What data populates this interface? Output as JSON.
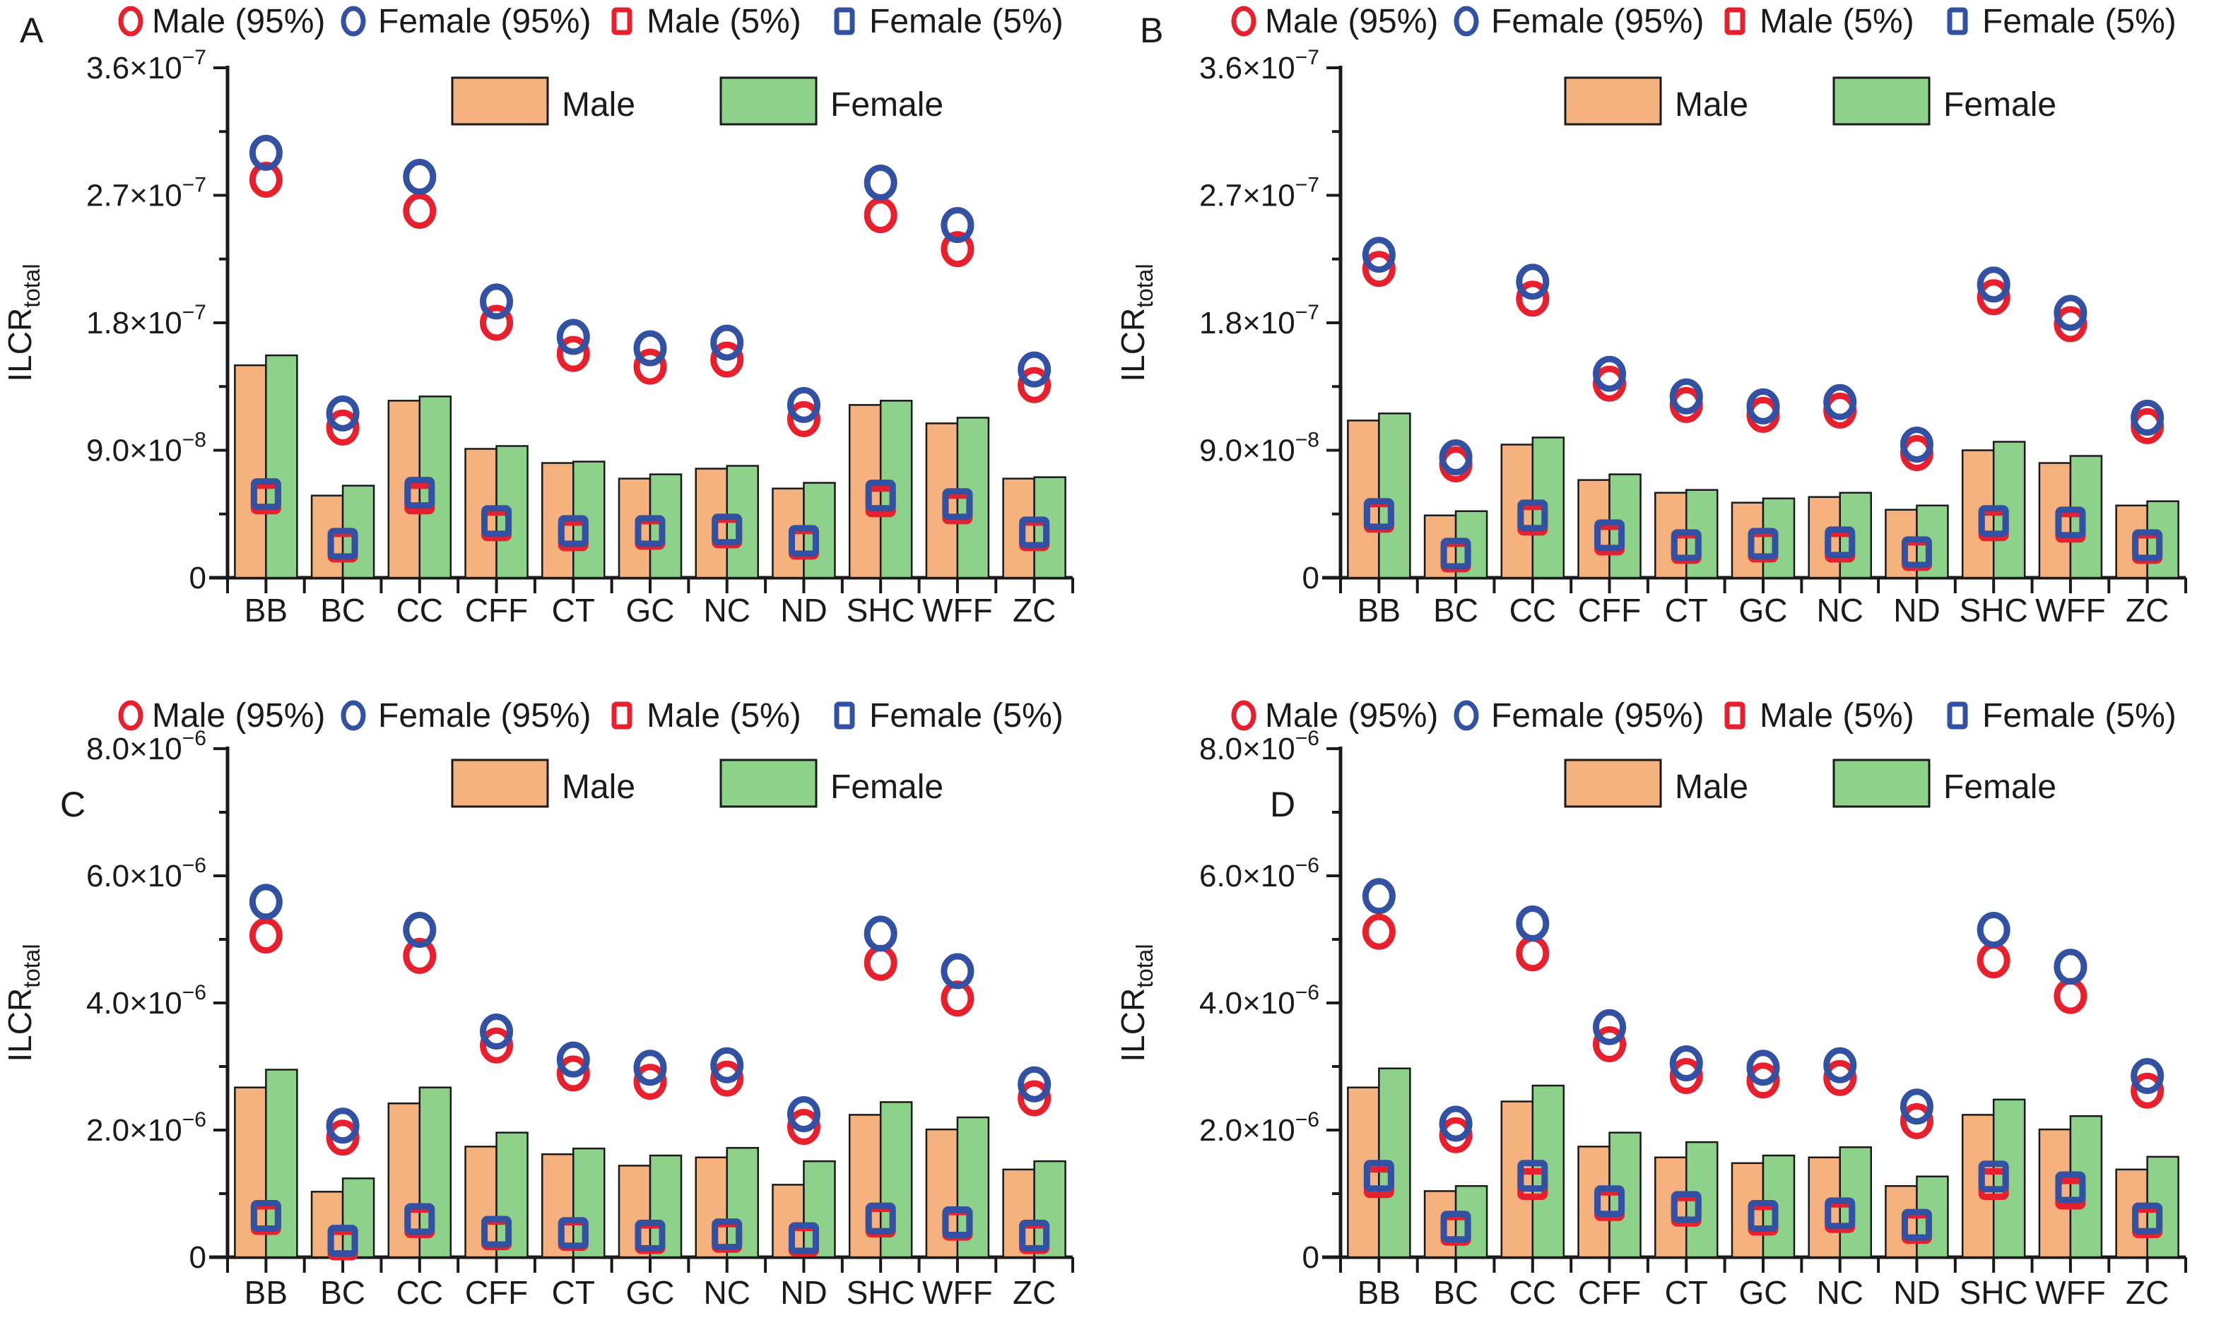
{
  "figure": {
    "ylabel": {
      "text": "ILCR",
      "sub": "total"
    },
    "colors": {
      "male_marker": "#e8202d",
      "female_marker": "#3351a3",
      "male_bar": "#f5b17e",
      "female_bar": "#8ed18b",
      "axis": "#1a1a1a"
    },
    "legend_markers": [
      {
        "label": "Male (95%)",
        "shape": "circle",
        "color": "#e8202d"
      },
      {
        "label": "Female (95%)",
        "shape": "circle",
        "color": "#3351a3"
      },
      {
        "label": "Male (5%)",
        "shape": "square",
        "color": "#e8202d"
      },
      {
        "label": "Female (5%)",
        "shape": "square",
        "color": "#3351a3"
      }
    ],
    "legend_bars": [
      {
        "label": "Male",
        "color": "#f5b17e"
      },
      {
        "label": "Female",
        "color": "#8ed18b"
      }
    ]
  },
  "chart_data": [
    {
      "panel": "A",
      "type": "bar",
      "categories": [
        "BB",
        "BC",
        "CC",
        "CFF",
        "CT",
        "GC",
        "NC",
        "ND",
        "SHC",
        "WFF",
        "ZC"
      ],
      "ylim": [
        0,
        3.6e-07
      ],
      "yticks": [
        {
          "v": 0,
          "m": "0",
          "e": ""
        },
        {
          "v": 9e-08,
          "m": "9.0×10",
          "e": "−8"
        },
        {
          "v": 1.8e-07,
          "m": "1.8×10",
          "e": "−7"
        },
        {
          "v": 2.7e-07,
          "m": "2.7×10",
          "e": "−7"
        },
        {
          "v": 3.6e-07,
          "m": "3.6×10",
          "e": "−7"
        }
      ],
      "yminor": [
        4.5e-08,
        1.35e-07,
        2.25e-07,
        3.15e-07
      ],
      "series": [
        {
          "name": "Male",
          "type": "bar",
          "color": "#f5b17e",
          "values": [
            1.5e-07,
            5.8e-08,
            1.25e-07,
            9.1e-08,
            8.1e-08,
            7e-08,
            7.7e-08,
            6.3e-08,
            1.22e-07,
            1.09e-07,
            7e-08
          ]
        },
        {
          "name": "Female",
          "type": "bar",
          "color": "#8ed18b",
          "values": [
            1.57e-07,
            6.5e-08,
            1.28e-07,
            9.3e-08,
            8.2e-08,
            7.3e-08,
            7.9e-08,
            6.7e-08,
            1.25e-07,
            1.13e-07,
            7.1e-08
          ]
        },
        {
          "name": "Male (95%)",
          "type": "circle",
          "color": "#e8202d",
          "values": [
            2.81e-07,
            1.06e-07,
            2.59e-07,
            1.8e-07,
            1.58e-07,
            1.49e-07,
            1.54e-07,
            1.12e-07,
            2.56e-07,
            2.32e-07,
            1.36e-07
          ]
        },
        {
          "name": "Female (95%)",
          "type": "circle",
          "color": "#3351a3",
          "values": [
            3e-07,
            1.16e-07,
            2.83e-07,
            1.95e-07,
            1.7e-07,
            1.62e-07,
            1.66e-07,
            1.22e-07,
            2.79e-07,
            2.49e-07,
            1.47e-07
          ]
        },
        {
          "name": "Male (5%)",
          "type": "square",
          "color": "#e8202d",
          "values": [
            5.6e-08,
            2.2e-08,
            5.6e-08,
            3.7e-08,
            3e-08,
            3.1e-08,
            3.2e-08,
            2.4e-08,
            5.4e-08,
            4.9e-08,
            3e-08
          ]
        },
        {
          "name": "Female (5%)",
          "type": "square",
          "color": "#3351a3",
          "values": [
            5.9e-08,
            2.4e-08,
            6e-08,
            4e-08,
            3.3e-08,
            3.3e-08,
            3.4e-08,
            2.6e-08,
            5.8e-08,
            5.2e-08,
            3.2e-08
          ]
        }
      ]
    },
    {
      "panel": "B",
      "type": "bar",
      "categories": [
        "BB",
        "BC",
        "CC",
        "CFF",
        "CT",
        "GC",
        "NC",
        "ND",
        "SHC",
        "WFF",
        "ZC"
      ],
      "ylim": [
        0,
        3.6e-07
      ],
      "yticks": [
        {
          "v": 0,
          "m": "0",
          "e": ""
        },
        {
          "v": 9e-08,
          "m": "9.0×10",
          "e": "−8"
        },
        {
          "v": 1.8e-07,
          "m": "1.8×10",
          "e": "−7"
        },
        {
          "v": 2.7e-07,
          "m": "2.7×10",
          "e": "−7"
        },
        {
          "v": 3.6e-07,
          "m": "3.6×10",
          "e": "−7"
        }
      ],
      "yminor": [
        4.5e-08,
        1.35e-07,
        2.25e-07,
        3.15e-07
      ],
      "series": [
        {
          "name": "Male",
          "type": "bar",
          "color": "#f5b17e",
          "values": [
            1.11e-07,
            4.4e-08,
            9.4e-08,
            6.9e-08,
            6e-08,
            5.3e-08,
            5.7e-08,
            4.8e-08,
            9e-08,
            8.1e-08,
            5.1e-08
          ]
        },
        {
          "name": "Female",
          "type": "bar",
          "color": "#8ed18b",
          "values": [
            1.16e-07,
            4.7e-08,
            9.9e-08,
            7.3e-08,
            6.2e-08,
            5.6e-08,
            6e-08,
            5.1e-08,
            9.6e-08,
            8.6e-08,
            5.4e-08
          ]
        },
        {
          "name": "Male (95%)",
          "type": "circle",
          "color": "#e8202d",
          "values": [
            2.18e-07,
            8e-08,
            1.97e-07,
            1.37e-07,
            1.22e-07,
            1.15e-07,
            1.18e-07,
            8.8e-08,
            1.98e-07,
            1.79e-07,
            1.07e-07
          ]
        },
        {
          "name": "Female (95%)",
          "type": "circle",
          "color": "#3351a3",
          "values": [
            2.28e-07,
            8.5e-08,
            2.09e-07,
            1.44e-07,
            1.28e-07,
            1.21e-07,
            1.24e-07,
            9.4e-08,
            2.07e-07,
            1.87e-07,
            1.13e-07
          ]
        },
        {
          "name": "Male (5%)",
          "type": "square",
          "color": "#e8202d",
          "values": [
            4.3e-08,
            1.5e-08,
            4.1e-08,
            2.7e-08,
            2.1e-08,
            2.2e-08,
            2.2e-08,
            1.6e-08,
            3.7e-08,
            3.6e-08,
            2.1e-08
          ]
        },
        {
          "name": "Female (5%)",
          "type": "square",
          "color": "#3351a3",
          "values": [
            4.5e-08,
            1.7e-08,
            4.4e-08,
            3e-08,
            2.3e-08,
            2.4e-08,
            2.5e-08,
            1.8e-08,
            4e-08,
            3.9e-08,
            2.3e-08
          ]
        }
      ]
    },
    {
      "panel": "C",
      "type": "bar",
      "categories": [
        "BB",
        "BC",
        "CC",
        "CFF",
        "CT",
        "GC",
        "NC",
        "ND",
        "SHC",
        "WFF",
        "ZC"
      ],
      "ylim": [
        0,
        8e-06
      ],
      "yticks": [
        {
          "v": 0,
          "m": "0",
          "e": ""
        },
        {
          "v": 2e-06,
          "m": "2.0×10",
          "e": "−6"
        },
        {
          "v": 4e-06,
          "m": "4.0×10",
          "e": "−6"
        },
        {
          "v": 6e-06,
          "m": "6.0×10",
          "e": "−6"
        },
        {
          "v": 8e-06,
          "m": "8.0×10",
          "e": "−6"
        }
      ],
      "yminor": [
        1e-06,
        3e-06,
        5e-06,
        7e-06
      ],
      "series": [
        {
          "name": "Male",
          "type": "bar",
          "color": "#f5b17e",
          "values": [
            2.67e-06,
            1.03e-06,
            2.42e-06,
            1.74e-06,
            1.62e-06,
            1.44e-06,
            1.57e-06,
            1.14e-06,
            2.24e-06,
            2.01e-06,
            1.38e-06
          ]
        },
        {
          "name": "Female",
          "type": "bar",
          "color": "#8ed18b",
          "values": [
            2.95e-06,
            1.24e-06,
            2.67e-06,
            1.96e-06,
            1.71e-06,
            1.6e-06,
            1.72e-06,
            1.51e-06,
            2.44e-06,
            2.2e-06,
            1.51e-06
          ]
        },
        {
          "name": "Male (95%)",
          "type": "circle",
          "color": "#e8202d",
          "values": [
            5.06e-06,
            1.88e-06,
            4.74e-06,
            3.33e-06,
            2.89e-06,
            2.76e-06,
            2.81e-06,
            2.05e-06,
            4.63e-06,
            4.07e-06,
            2.5e-06
          ]
        },
        {
          "name": "Female (95%)",
          "type": "circle",
          "color": "#3351a3",
          "values": [
            5.59e-06,
            2.07e-06,
            5.15e-06,
            3.55e-06,
            3.11e-06,
            2.98e-06,
            3.02e-06,
            2.25e-06,
            5.09e-06,
            4.5e-06,
            2.72e-06
          ]
        },
        {
          "name": "Male (5%)",
          "type": "square",
          "color": "#e8202d",
          "values": [
            6e-07,
            2e-07,
            5.5e-07,
            3.6e-07,
            3.5e-07,
            3e-07,
            3.2e-07,
            2.6e-07,
            5.6e-07,
            5.1e-07,
            3e-07
          ]
        },
        {
          "name": "Female (5%)",
          "type": "square",
          "color": "#3351a3",
          "values": [
            6.5e-07,
            2.6e-07,
            6e-07,
            4e-07,
            3.8e-07,
            3.4e-07,
            3.6e-07,
            3e-07,
            6.1e-07,
            5.5e-07,
            3.4e-07
          ]
        }
      ]
    },
    {
      "panel": "D",
      "type": "bar",
      "categories": [
        "BB",
        "BC",
        "CC",
        "CFF",
        "CT",
        "GC",
        "NC",
        "ND",
        "SHC",
        "WFF",
        "ZC"
      ],
      "ylim": [
        0,
        8e-06
      ],
      "yticks": [
        {
          "v": 0,
          "m": "0",
          "e": ""
        },
        {
          "v": 2e-06,
          "m": "2.0×10",
          "e": "−6"
        },
        {
          "v": 4e-06,
          "m": "4.0×10",
          "e": "−6"
        },
        {
          "v": 6e-06,
          "m": "6.0×10",
          "e": "−6"
        },
        {
          "v": 8e-06,
          "m": "8.0×10",
          "e": "−6"
        }
      ],
      "yminor": [
        1e-06,
        3e-06,
        5e-06,
        7e-06
      ],
      "series": [
        {
          "name": "Male",
          "type": "bar",
          "color": "#f5b17e",
          "values": [
            2.67e-06,
            1.04e-06,
            2.45e-06,
            1.74e-06,
            1.57e-06,
            1.48e-06,
            1.57e-06,
            1.12e-06,
            2.24e-06,
            2.01e-06,
            1.38e-06
          ]
        },
        {
          "name": "Female",
          "type": "bar",
          "color": "#8ed18b",
          "values": [
            2.97e-06,
            1.12e-06,
            2.7e-06,
            1.96e-06,
            1.81e-06,
            1.6e-06,
            1.73e-06,
            1.27e-06,
            2.48e-06,
            2.22e-06,
            1.58e-06
          ]
        },
        {
          "name": "Male (95%)",
          "type": "circle",
          "color": "#e8202d",
          "values": [
            5.12e-06,
            1.92e-06,
            4.78e-06,
            3.35e-06,
            2.85e-06,
            2.78e-06,
            2.82e-06,
            2.14e-06,
            4.67e-06,
            4.11e-06,
            2.62e-06
          ]
        },
        {
          "name": "Female (95%)",
          "type": "circle",
          "color": "#3351a3",
          "values": [
            5.68e-06,
            2.1e-06,
            5.25e-06,
            3.62e-06,
            3.05e-06,
            2.98e-06,
            3.02e-06,
            2.37e-06,
            5.15e-06,
            4.57e-06,
            2.85e-06
          ]
        },
        {
          "name": "Male (5%)",
          "type": "square",
          "color": "#e8202d",
          "values": [
            1.18e-06,
            4.3e-07,
            1.15e-06,
            8.2e-07,
            7.3e-07,
            5.9e-07,
            6.3e-07,
            4.6e-07,
            1.15e-06,
            1e-06,
            5.5e-07
          ]
        },
        {
          "name": "Female (5%)",
          "type": "square",
          "color": "#3351a3",
          "values": [
            1.28e-06,
            4.8e-07,
            1.28e-06,
            8.8e-07,
            7.9e-07,
            6.5e-07,
            6.9e-07,
            5.1e-07,
            1.27e-06,
            1.1e-06,
            6.1e-07
          ]
        }
      ]
    }
  ]
}
